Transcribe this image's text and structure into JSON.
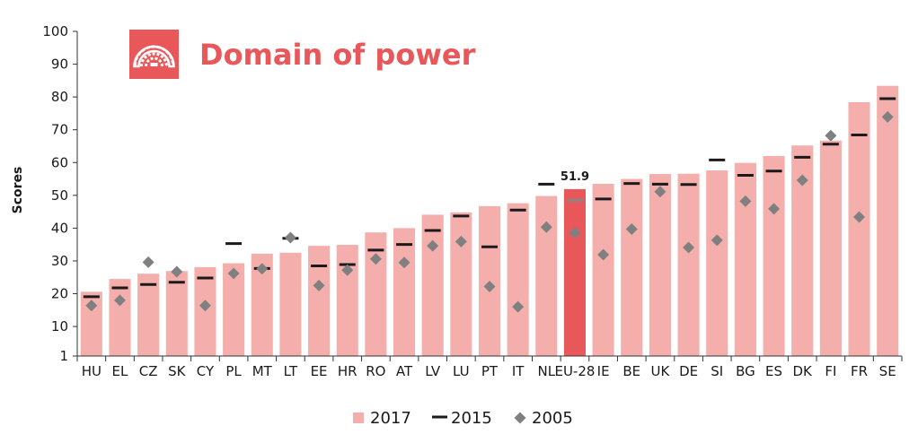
{
  "chart_data": {
    "type": "bar",
    "title": "Domain of power",
    "ylabel": "Scores",
    "xlabel": "",
    "ylim": [
      1,
      100
    ],
    "yticks": [
      1,
      10,
      20,
      30,
      40,
      50,
      60,
      70,
      80,
      90,
      100
    ],
    "categories": [
      "HU",
      "EL",
      "CZ",
      "SK",
      "CY",
      "PL",
      "MT",
      "LT",
      "EE",
      "HR",
      "RO",
      "AT",
      "LV",
      "LU",
      "PT",
      "IT",
      "NL",
      "EU-28",
      "IE",
      "BE",
      "UK",
      "DE",
      "SI",
      "BG",
      "ES",
      "DK",
      "FI",
      "FR",
      "SE"
    ],
    "highlight_category": "EU-28",
    "highlight_label": "51.9",
    "series": [
      {
        "name": "2017",
        "marker": "bar",
        "values": [
          20.6,
          24.5,
          26.1,
          26.9,
          28.1,
          29.3,
          32.2,
          32.5,
          34.6,
          34.9,
          38.7,
          40.0,
          44.1,
          44.8,
          46.7,
          47.6,
          49.8,
          51.9,
          53.5,
          55.0,
          56.5,
          56.6,
          57.6,
          59.9,
          62.0,
          65.2,
          66.7,
          78.4,
          83.4
        ]
      },
      {
        "name": "2015",
        "marker": "dash",
        "values": [
          19.1,
          21.8,
          22.8,
          23.5,
          24.8,
          35.3,
          27.7,
          36.9,
          28.5,
          28.9,
          33.3,
          35.0,
          39.3,
          43.7,
          34.3,
          45.5,
          53.4,
          48.5,
          48.9,
          53.6,
          53.4,
          53.3,
          60.8,
          56.1,
          57.4,
          61.6,
          65.6,
          68.4,
          79.5
        ]
      },
      {
        "name": "2005",
        "marker": "diamond",
        "values": [
          16.4,
          18.0,
          29.6,
          26.7,
          16.4,
          26.2,
          27.6,
          37.1,
          22.5,
          27.2,
          30.6,
          29.5,
          34.6,
          35.9,
          22.2,
          16.0,
          40.3,
          38.6,
          31.9,
          39.7,
          51.1,
          34.1,
          36.3,
          48.2,
          45.9,
          54.6,
          68.2,
          43.4,
          73.9
        ]
      }
    ],
    "legend_position": "bottom-center",
    "grid": false
  },
  "colors": {
    "bar": "#f4aeac",
    "bar_highlight": "#e8585a",
    "dash": "#1a1a1a",
    "dash_highlight": "#888888",
    "diamond": "#808080",
    "title": "#e8585a",
    "icon_bg": "#e8585a",
    "axis": "#333333"
  },
  "icon": "parliament-icon"
}
